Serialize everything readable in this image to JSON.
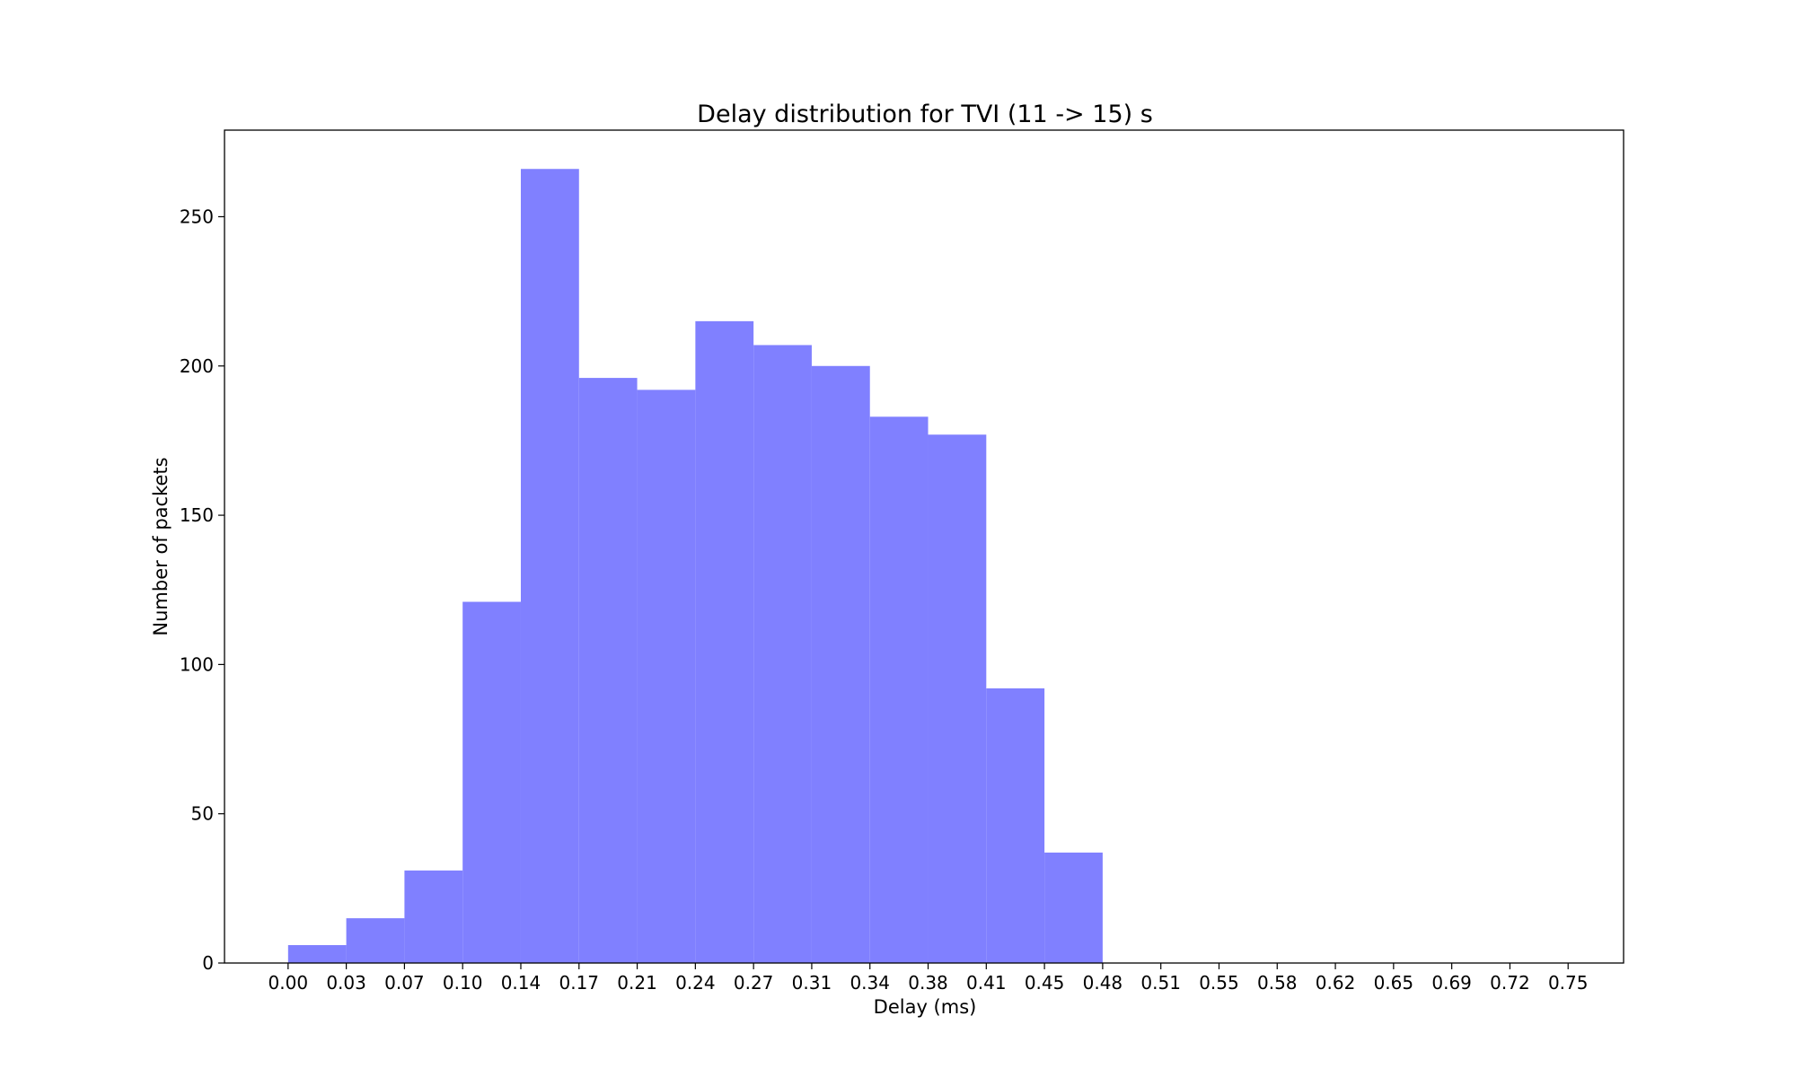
{
  "chart_data": {
    "type": "bar",
    "title": "Delay distribution for TVI (11 -> 15) s",
    "xlabel": "Delay (ms)",
    "ylabel": "Number of packets",
    "bar_color": "#8080ff",
    "xlim": [
      -0.0376,
      0.7896
    ],
    "ylim": [
      0,
      279
    ],
    "x_ticks": [
      "0.00",
      "0.03",
      "0.07",
      "0.10",
      "0.14",
      "0.17",
      "0.21",
      "0.24",
      "0.27",
      "0.31",
      "0.34",
      "0.38",
      "0.41",
      "0.45",
      "0.48",
      "0.51",
      "0.55",
      "0.58",
      "0.62",
      "0.65",
      "0.69",
      "0.72",
      "0.75"
    ],
    "y_ticks": [
      0,
      50,
      100,
      150,
      200,
      250
    ],
    "bin_width": 0.0344,
    "bins": [
      {
        "start": 0.0,
        "value": 6
      },
      {
        "start": 0.0344,
        "value": 15
      },
      {
        "start": 0.0688,
        "value": 31
      },
      {
        "start": 0.1032,
        "value": 121
      },
      {
        "start": 0.1376,
        "value": 266
      },
      {
        "start": 0.172,
        "value": 196
      },
      {
        "start": 0.2064,
        "value": 192
      },
      {
        "start": 0.2408,
        "value": 215
      },
      {
        "start": 0.2752,
        "value": 207
      },
      {
        "start": 0.3096,
        "value": 200
      },
      {
        "start": 0.344,
        "value": 183
      },
      {
        "start": 0.3784,
        "value": 177
      },
      {
        "start": 0.4128,
        "value": 92
      },
      {
        "start": 0.4472,
        "value": 37
      }
    ],
    "grid": false,
    "legend": "none"
  }
}
